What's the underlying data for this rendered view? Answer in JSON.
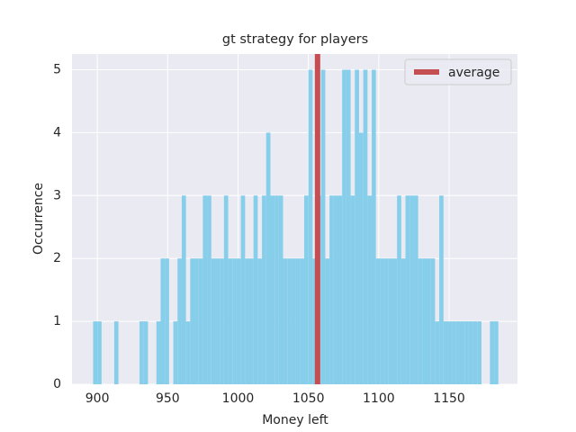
{
  "chart_data": {
    "type": "histogram",
    "title": "gt strategy for players",
    "xlabel": "Money left",
    "ylabel": "Occurrence",
    "bins": [
      894,
      897,
      900,
      903,
      906,
      909,
      912,
      915,
      918,
      921,
      924,
      927,
      930,
      933,
      936,
      939,
      942,
      945,
      948,
      951,
      954,
      957,
      960,
      963,
      966,
      969,
      972,
      975,
      978,
      981,
      984,
      987,
      990,
      993,
      996,
      999,
      1002,
      1005,
      1008,
      1011,
      1014,
      1017,
      1020,
      1023,
      1026,
      1029,
      1032,
      1035,
      1038,
      1041,
      1044,
      1047,
      1050,
      1053,
      1056,
      1059,
      1062,
      1065,
      1068,
      1071,
      1074,
      1077,
      1080,
      1083,
      1086,
      1089,
      1092,
      1095,
      1098,
      1101,
      1104,
      1107,
      1110,
      1113,
      1116,
      1119,
      1122,
      1125,
      1128,
      1131,
      1134,
      1137,
      1140,
      1143,
      1146,
      1149,
      1152,
      1155,
      1158,
      1161,
      1164,
      1167,
      1170,
      1173,
      1176,
      1179,
      1182,
      1185,
      1188
    ],
    "values": [
      0,
      1,
      1,
      0,
      0,
      0,
      1,
      0,
      0,
      0,
      0,
      0,
      1,
      1,
      0,
      0,
      1,
      2,
      2,
      0,
      1,
      2,
      3,
      1,
      2,
      2,
      2,
      3,
      3,
      2,
      2,
      2,
      3,
      2,
      2,
      2,
      3,
      2,
      2,
      3,
      2,
      3,
      4,
      3,
      3,
      3,
      2,
      2,
      2,
      2,
      2,
      3,
      5,
      2,
      3,
      5,
      2,
      3,
      3,
      3,
      5,
      5,
      3,
      5,
      4,
      5,
      3,
      5,
      2,
      2,
      2,
      2,
      2,
      3,
      2,
      3,
      3,
      3,
      2,
      2,
      2,
      2,
      1,
      3,
      1,
      1,
      1,
      1,
      1,
      1,
      1,
      1,
      1,
      0,
      0,
      1,
      1,
      0
    ],
    "color": "#87ceeb",
    "reference_line": {
      "name": "average",
      "x": 1056.5,
      "color": "#c44e52"
    },
    "legend": "upper right",
    "xlim": [
      882,
      1198.6
    ],
    "xticks": [
      900,
      950,
      1000,
      1050,
      1100,
      1150
    ],
    "ylim": [
      0,
      5.25
    ],
    "yticks": [
      0,
      1,
      2,
      3,
      4,
      5
    ],
    "grid": true
  }
}
